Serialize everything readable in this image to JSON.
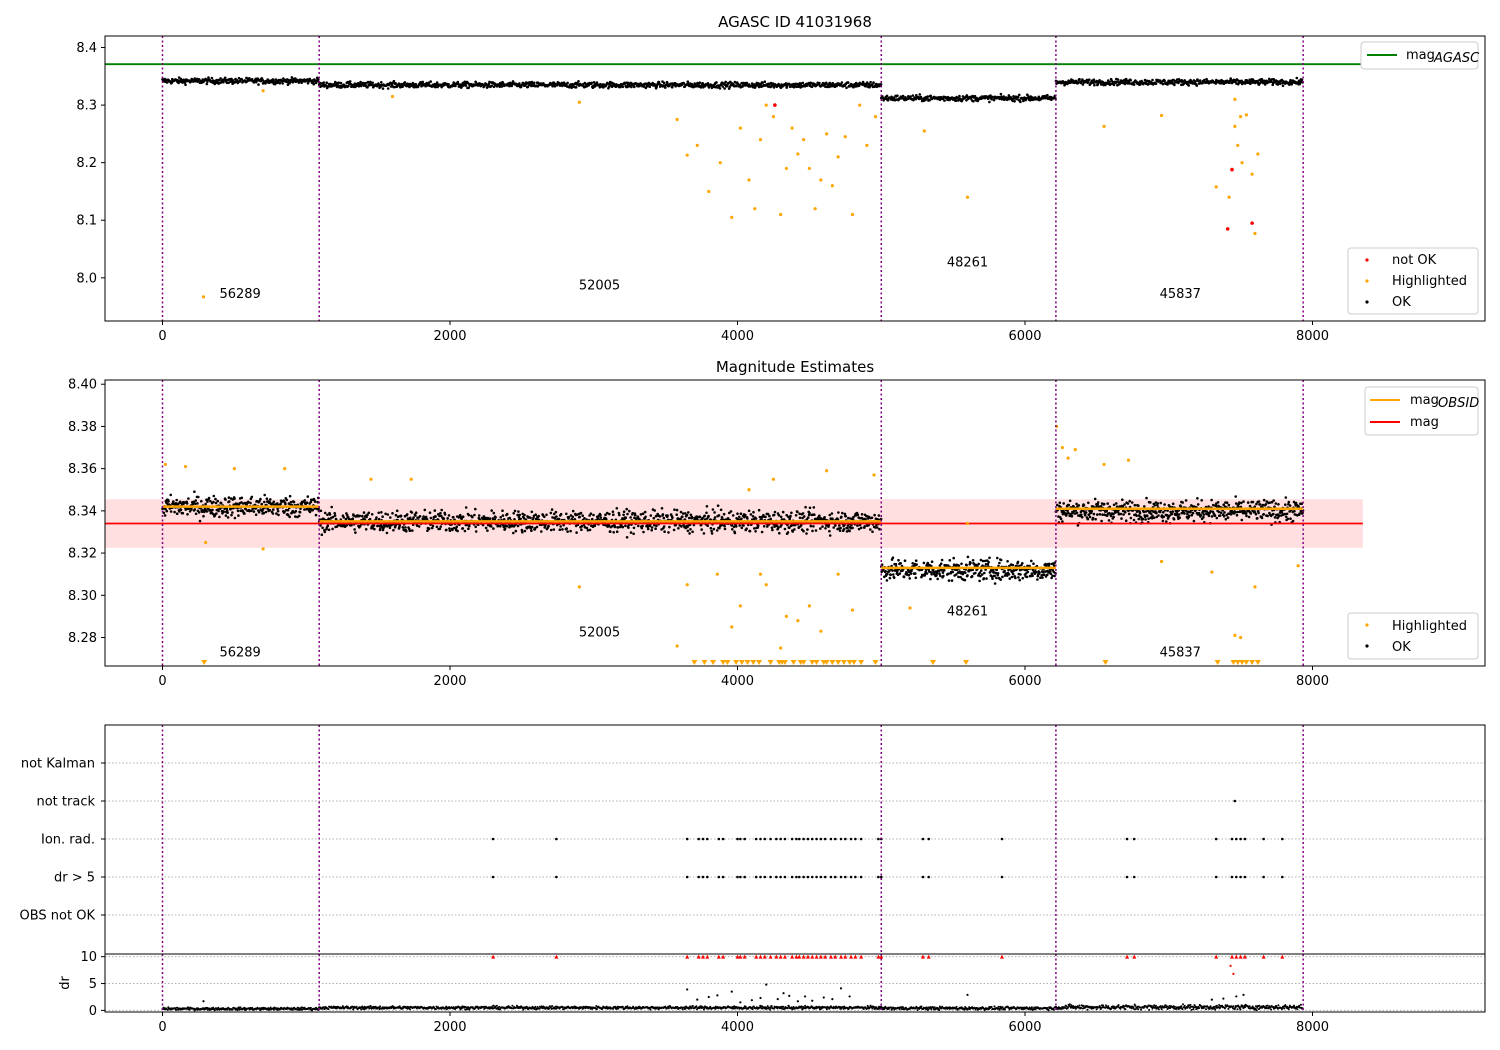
{
  "chart_data": [
    {
      "type": "scatter",
      "title": "AGASC ID 41031968",
      "xlim": [
        -400,
        9200
      ],
      "ylim": [
        7.925,
        8.42
      ],
      "x_ticks": [
        0,
        2000,
        4000,
        6000,
        8000
      ],
      "y_ticks": [
        8.0,
        8.1,
        8.2,
        8.3,
        8.4
      ],
      "y_tick_labels": [
        "8.0",
        "8.1",
        "8.2",
        "8.3",
        "8.4"
      ],
      "obsid_boundaries": [
        0,
        1090,
        5000,
        6215,
        7935
      ],
      "obsid_labels": [
        {
          "text": "56289",
          "x": 540,
          "y": 7.965
        },
        {
          "text": "52005",
          "x": 3040,
          "y": 7.98
        },
        {
          "text": "48261",
          "x": 5600,
          "y": 8.02
        },
        {
          "text": "45837",
          "x": 7080,
          "y": 7.965
        }
      ],
      "hlines": [
        {
          "name": "mag_AGASC",
          "y": 8.371,
          "color": "#008000",
          "xmax": 8350
        }
      ],
      "segments": [
        {
          "x": [
            0,
            1090
          ],
          "center": 8.342,
          "spread": 0.006
        },
        {
          "x": [
            1090,
            5000
          ],
          "center": 8.335,
          "spread": 0.006
        },
        {
          "x": [
            5000,
            6215
          ],
          "center": 8.312,
          "spread": 0.006
        },
        {
          "x": [
            6215,
            7935
          ],
          "center": 8.34,
          "spread": 0.006
        }
      ],
      "highlighted_points": [
        [
          285,
          7.967
        ],
        [
          700,
          8.325
        ],
        [
          1600,
          8.315
        ],
        [
          2900,
          8.305
        ],
        [
          3580,
          8.275
        ],
        [
          3650,
          8.213
        ],
        [
          3720,
          8.23
        ],
        [
          3800,
          8.15
        ],
        [
          3880,
          8.2
        ],
        [
          3960,
          8.105
        ],
        [
          4020,
          8.26
        ],
        [
          4080,
          8.17
        ],
        [
          4120,
          8.12
        ],
        [
          4160,
          8.24
        ],
        [
          4200,
          8.3
        ],
        [
          4250,
          8.28
        ],
        [
          4300,
          8.11
        ],
        [
          4340,
          8.19
        ],
        [
          4380,
          8.26
        ],
        [
          4420,
          8.215
        ],
        [
          4460,
          8.24
        ],
        [
          4500,
          8.19
        ],
        [
          4540,
          8.12
        ],
        [
          4580,
          8.17
        ],
        [
          4620,
          8.25
        ],
        [
          4660,
          8.16
        ],
        [
          4700,
          8.21
        ],
        [
          4750,
          8.245
        ],
        [
          4800,
          8.11
        ],
        [
          4850,
          8.3
        ],
        [
          4900,
          8.23
        ],
        [
          4960,
          8.28
        ],
        [
          5300,
          8.255
        ],
        [
          5600,
          8.14
        ],
        [
          6550,
          8.263
        ],
        [
          6950,
          8.282
        ],
        [
          7330,
          8.158
        ],
        [
          7420,
          8.14
        ],
        [
          7460,
          8.263
        ],
        [
          7480,
          8.23
        ],
        [
          7510,
          8.2
        ],
        [
          7540,
          8.283
        ],
        [
          7580,
          8.18
        ],
        [
          7600,
          8.077
        ],
        [
          7620,
          8.215
        ],
        [
          7460,
          8.31
        ],
        [
          7500,
          8.28
        ]
      ],
      "not_ok_points": [
        [
          4260,
          8.3
        ],
        [
          7440,
          8.188
        ],
        [
          7410,
          8.085
        ],
        [
          7580,
          8.095
        ]
      ],
      "legend": {
        "location": "top-right",
        "entries": [
          {
            "label": "mag",
            "sub": "AGASC",
            "color": "#008000"
          }
        ]
      },
      "legend2": {
        "location": "lower-right",
        "entries": [
          {
            "label": "not OK",
            "color": "#ff0000"
          },
          {
            "label": "Highlighted",
            "color": "#ffa500"
          },
          {
            "label": "OK",
            "color": "#000000"
          }
        ]
      }
    },
    {
      "type": "scatter",
      "title": "Magnitude Estimates",
      "xlim": [
        -400,
        9200
      ],
      "ylim": [
        8.2665,
        8.402
      ],
      "x_ticks": [
        0,
        2000,
        4000,
        6000,
        8000
      ],
      "y_ticks": [
        8.28,
        8.3,
        8.32,
        8.34,
        8.36,
        8.38,
        8.4
      ],
      "y_tick_labels": [
        "8.28",
        "8.30",
        "8.32",
        "8.34",
        "8.36",
        "8.38",
        "8.40"
      ],
      "obsid_boundaries": [
        0,
        1090,
        5000,
        6215,
        7935
      ],
      "obsid_labels": [
        {
          "text": "56289",
          "x": 540,
          "y": 8.271
        },
        {
          "text": "52005",
          "x": 3040,
          "y": 8.2805
        },
        {
          "text": "48261",
          "x": 5600,
          "y": 8.2905
        },
        {
          "text": "45837",
          "x": 7080,
          "y": 8.271
        }
      ],
      "mag": {
        "name": "mag",
        "value": 8.334,
        "band": [
          8.3225,
          8.3455
        ],
        "xmax": 8350,
        "color": "#ff0000"
      },
      "mag_obsid": [
        {
          "x": [
            0,
            1090
          ],
          "y": 8.342
        },
        {
          "x": [
            1090,
            5000
          ],
          "y": 8.335
        },
        {
          "x": [
            5000,
            6215
          ],
          "y": 8.313
        },
        {
          "x": [
            6215,
            7935
          ],
          "y": 8.341
        }
      ],
      "segments": [
        {
          "x": [
            0,
            1090
          ],
          "center": 8.342,
          "spread": 0.006
        },
        {
          "x": [
            1090,
            5000
          ],
          "center": 8.335,
          "spread": 0.006
        },
        {
          "x": [
            5000,
            6215
          ],
          "center": 8.312,
          "spread": 0.006
        },
        {
          "x": [
            6215,
            7935
          ],
          "center": 8.34,
          "spread": 0.006
        }
      ],
      "highlighted_points": [
        [
          20,
          8.362
        ],
        [
          160,
          8.361
        ],
        [
          300,
          8.325
        ],
        [
          500,
          8.36
        ],
        [
          700,
          8.322
        ],
        [
          850,
          8.36
        ],
        [
          1450,
          8.355
        ],
        [
          1730,
          8.355
        ],
        [
          2900,
          8.304
        ],
        [
          3580,
          8.276
        ],
        [
          3860,
          8.31
        ],
        [
          3960,
          8.285
        ],
        [
          4020,
          8.295
        ],
        [
          4080,
          8.35
        ],
        [
          4160,
          8.31
        ],
        [
          4200,
          8.305
        ],
        [
          4250,
          8.355
        ],
        [
          4300,
          8.275
        ],
        [
          4340,
          8.29
        ],
        [
          4420,
          8.288
        ],
        [
          4500,
          8.295
        ],
        [
          4580,
          8.283
        ],
        [
          4620,
          8.359
        ],
        [
          4700,
          8.31
        ],
        [
          4800,
          8.293
        ],
        [
          4950,
          8.357
        ],
        [
          5200,
          8.294
        ],
        [
          5600,
          8.334
        ],
        [
          6220,
          8.38
        ],
        [
          6260,
          8.37
        ],
        [
          6300,
          8.365
        ],
        [
          6350,
          8.369
        ],
        [
          6550,
          8.362
        ],
        [
          6720,
          8.364
        ],
        [
          6950,
          8.316
        ],
        [
          7300,
          8.311
        ],
        [
          7460,
          8.281
        ],
        [
          7500,
          8.28
        ],
        [
          7600,
          8.304
        ],
        [
          7900,
          8.314
        ],
        [
          3650,
          8.305
        ]
      ],
      "below_range_x": [
        290,
        3700,
        3770,
        3830,
        3900,
        3930,
        3990,
        4030,
        4070,
        4110,
        4150,
        4230,
        4290,
        4310,
        4330,
        4390,
        4440,
        4460,
        4520,
        4550,
        4600,
        4620,
        4660,
        4700,
        4740,
        4780,
        4810,
        4860,
        4960,
        5360,
        5590,
        6560,
        7340,
        7450,
        7480,
        7510,
        7540,
        7580,
        7620
      ],
      "legend": {
        "location": "top-right",
        "entries": [
          {
            "label": "mag",
            "sub": "OBSID",
            "color": "#ffa500"
          },
          {
            "label": "mag",
            "color": "#ff0000"
          }
        ]
      },
      "legend2": {
        "location": "lower-right",
        "entries": [
          {
            "label": "Highlighted",
            "color": "#ffa500"
          },
          {
            "label": "OK",
            "color": "#000000"
          }
        ]
      }
    },
    {
      "type": "scatter",
      "title": "",
      "xlim": [
        -400,
        9200
      ],
      "categories": [
        "not Kalman",
        "not track",
        "Ion. rad.",
        "dr > 5",
        "OBS not OK"
      ],
      "obsid_boundaries": [
        0,
        1090,
        5000,
        6215,
        7935
      ],
      "flag_x": [
        2300,
        2740,
        3650,
        3730,
        3760,
        3790,
        3870,
        3900,
        4000,
        4020,
        4050,
        4130,
        4160,
        4190,
        4230,
        4270,
        4300,
        4330,
        4380,
        4410,
        4430,
        4460,
        4490,
        4520,
        4550,
        4580,
        4610,
        4650,
        4680,
        4720,
        4750,
        4790,
        4820,
        4860,
        4980,
        5000,
        5290,
        5330,
        5840,
        6710,
        6760,
        7330,
        7440,
        7470,
        7500,
        7530,
        7660,
        7790
      ],
      "not_track_x": [
        7460
      ],
      "not_track_category": "not track",
      "flag_categories": [
        "Ion. rad.",
        "dr > 5"
      ]
    },
    {
      "type": "scatter",
      "title": "",
      "xlim": [
        -400,
        9200
      ],
      "ylim": [
        -0.3,
        10.5
      ],
      "ylabel": "dr",
      "y_ticks": [
        0,
        5,
        10
      ],
      "y_tick_labels": [
        "0",
        "5",
        "10"
      ],
      "obsid_boundaries": [
        0,
        1090,
        5000,
        6215,
        7935
      ],
      "segments": [
        {
          "x": [
            0,
            1090
          ],
          "center": 0.3,
          "spread": 0.25
        },
        {
          "x": [
            1090,
            5000
          ],
          "center": 0.5,
          "spread": 0.3
        },
        {
          "x": [
            5000,
            6215
          ],
          "center": 0.4,
          "spread": 0.3
        },
        {
          "x": [
            6215,
            7935
          ],
          "center": 0.6,
          "spread": 0.45
        }
      ],
      "scatter_points": [
        [
          285,
          1.7
        ],
        [
          3650,
          3.9
        ],
        [
          3720,
          2.0
        ],
        [
          3800,
          2.5
        ],
        [
          3860,
          2.8
        ],
        [
          3960,
          3.5
        ],
        [
          4020,
          1.5
        ],
        [
          4100,
          1.9
        ],
        [
          4160,
          2.3
        ],
        [
          4200,
          4.8
        ],
        [
          4280,
          2.1
        ],
        [
          4320,
          3.2
        ],
        [
          4360,
          2.7
        ],
        [
          4420,
          1.7
        ],
        [
          4470,
          2.6
        ],
        [
          4520,
          1.8
        ],
        [
          4600,
          2.4
        ],
        [
          4660,
          2.1
        ],
        [
          4720,
          4.1
        ],
        [
          4780,
          2.6
        ],
        [
          5600,
          2.9
        ],
        [
          7300,
          2.0
        ],
        [
          7380,
          2.2
        ],
        [
          7430,
          8.3
        ],
        [
          7450,
          6.8
        ],
        [
          7470,
          2.6
        ],
        [
          7520,
          2.9
        ]
      ],
      "capped_x": [
        2300,
        2740,
        3650,
        3730,
        3760,
        3790,
        3870,
        3900,
        4000,
        4020,
        4050,
        4130,
        4160,
        4190,
        4230,
        4270,
        4300,
        4330,
        4380,
        4410,
        4430,
        4460,
        4490,
        4520,
        4550,
        4580,
        4610,
        4650,
        4680,
        4720,
        4750,
        4790,
        4820,
        4860,
        4980,
        5000,
        5290,
        5330,
        5840,
        6710,
        6760,
        7330,
        7440,
        7470,
        7500,
        7530,
        7660,
        7790
      ],
      "capped_value": 10
    }
  ],
  "x_tick_labels": [
    "0",
    "2000",
    "4000",
    "6000",
    "8000"
  ],
  "colors": {
    "ok": "#000000",
    "highlighted": "#ffa500",
    "not_ok": "#ff0000",
    "obsid_line": "#800080",
    "agasc_line": "#008000",
    "mag_line": "#ff0000",
    "mag_band": "#ffc0c0",
    "mag_obsid_line": "#ffa500",
    "grid": "#b0b0b0"
  }
}
